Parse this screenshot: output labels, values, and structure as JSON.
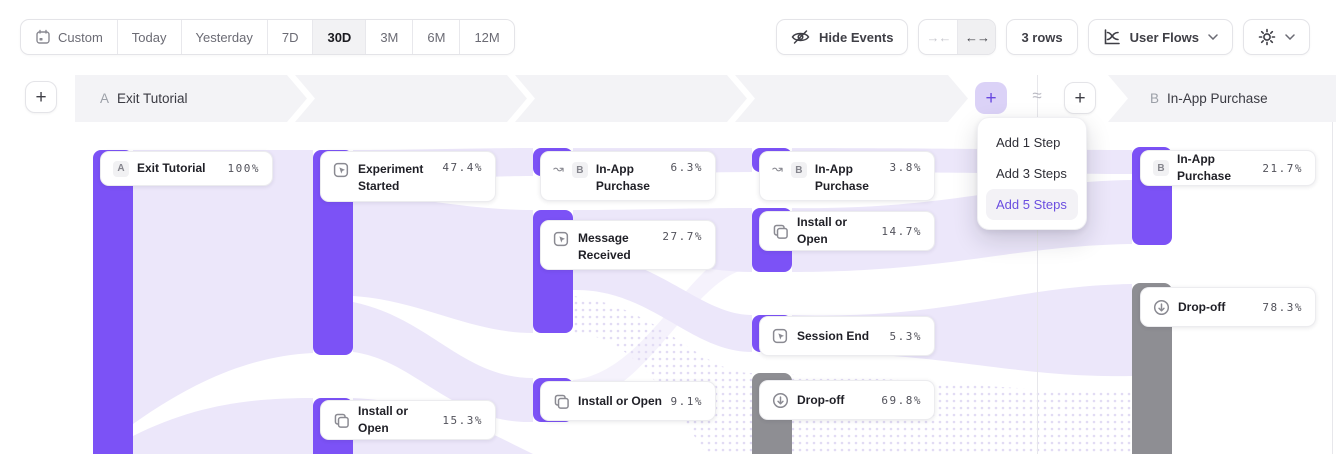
{
  "toolbar": {
    "date_ranges": [
      {
        "label": "Custom",
        "icon": "calendar-icon",
        "selected": false
      },
      {
        "label": "Today",
        "selected": false
      },
      {
        "label": "Yesterday",
        "selected": false
      },
      {
        "label": "7D",
        "selected": false
      },
      {
        "label": "30D",
        "selected": true
      },
      {
        "label": "3M",
        "selected": false
      },
      {
        "label": "6M",
        "selected": false
      },
      {
        "label": "12M",
        "selected": false
      }
    ],
    "hide_events_label": "Hide Events",
    "collapse_icon": "→←",
    "expand_icon": "←→",
    "rows_label": "3 rows",
    "view_label": "User Flows"
  },
  "flow_header": {
    "step_a": {
      "letter": "A",
      "label": "Exit Tutorial"
    },
    "step_b": {
      "letter": "B",
      "label": "In-App Purchase"
    },
    "approx_symbol": "≈",
    "add_step_plus": "+",
    "add_node_plus": "+",
    "new_chart_plus": "+"
  },
  "add_steps_menu": {
    "items": [
      {
        "label": "Add 1 Step",
        "highlighted": false
      },
      {
        "label": "Add 3 Steps",
        "highlighted": false
      },
      {
        "label": "Add 5 Steps",
        "highlighted": true
      }
    ]
  },
  "flow": {
    "nodes": [
      {
        "badge": "A",
        "label": "Exit Tutorial",
        "value": "100%"
      },
      {
        "icon": "event-icon",
        "label": "Experiment Started",
        "value": "47.4%"
      },
      {
        "icon": "copy-icon",
        "label": "Install or Open",
        "value": "15.3%"
      },
      {
        "icon": "jump-arrow-icon",
        "badge": "B",
        "label": "In-App Purchase",
        "value": "6.3%"
      },
      {
        "icon": "event-icon",
        "label": "Message Received",
        "value": "27.7%"
      },
      {
        "icon": "copy-icon",
        "label": "Install or Open",
        "value": "9.1%"
      },
      {
        "icon": "jump-arrow-icon",
        "badge": "B",
        "label": "In-App Purchase",
        "value": "3.8%"
      },
      {
        "icon": "copy-icon",
        "label": "Install or Open",
        "value": "14.7%"
      },
      {
        "icon": "event-icon",
        "label": "Session End",
        "value": "5.3%"
      },
      {
        "icon": "drop-off-icon",
        "label": "Drop-off",
        "value": "69.8%",
        "tone": "gray"
      },
      {
        "badge": "B",
        "label": "In-App Purchase",
        "value": "21.7%"
      },
      {
        "icon": "drop-off-icon",
        "label": "Drop-off",
        "value": "78.3%",
        "tone": "gray"
      }
    ]
  },
  "colors": {
    "accent_purple": "#7C52F6",
    "bar_gray": "#8E8E93",
    "ribbon_lavender": "#ECE7FA",
    "banner_gray": "#F3F3F6",
    "menu_highlight_text": "#6B4EE0"
  }
}
